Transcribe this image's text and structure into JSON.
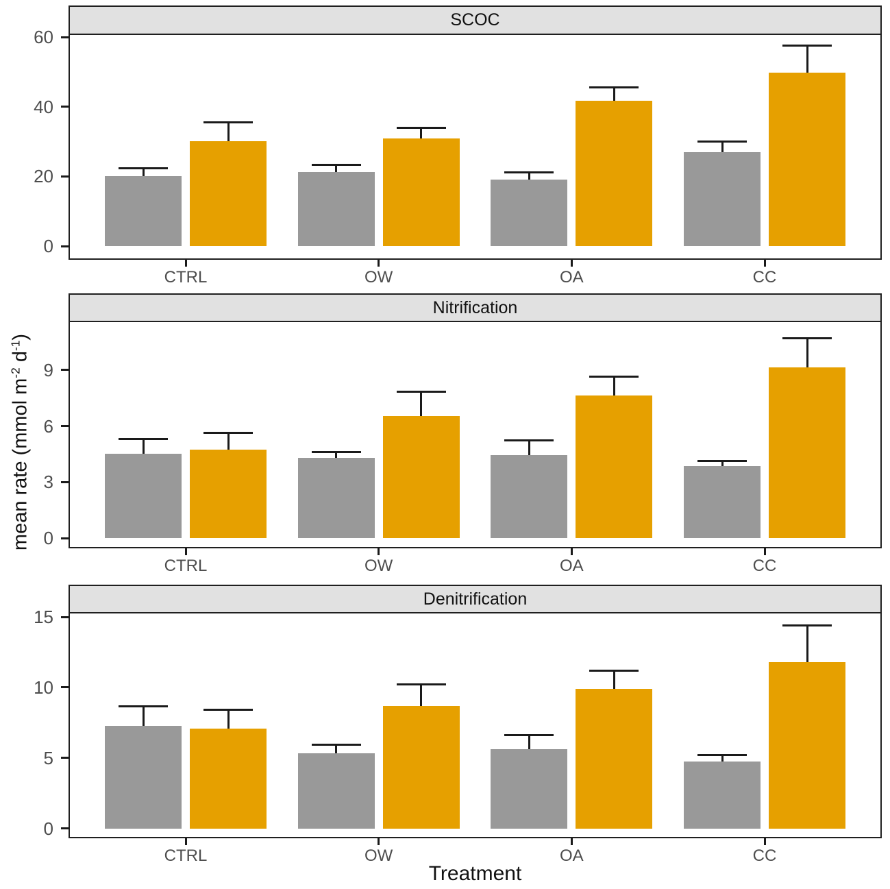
{
  "figure": {
    "x_axis_title": "Treatment",
    "y_axis_title": "mean rate (mmol m-2 d-1)",
    "y_axis_title_segments": [
      {
        "text": "mean rate (mmol m"
      },
      {
        "text": "-2",
        "sup": true
      },
      {
        "text": " d"
      },
      {
        "text": "-1",
        "sup": true
      },
      {
        "text": ")"
      }
    ]
  },
  "palette": {
    "grey_bar": "#999999",
    "orange_bar": "#E6A000",
    "strip_bg": "#E1E1E1",
    "panel_border": "#1F1F1F",
    "axis_text": "#4D4D4D",
    "errorbar": "#1A1A1A"
  },
  "chart_data": [
    {
      "type": "bar",
      "title": "SCOC",
      "categories": [
        "CTRL",
        "OW",
        "OA",
        "CC"
      ],
      "series": [
        {
          "name": "grey",
          "color_key": "grey_bar",
          "values": [
            20.0,
            21.2,
            19.2,
            26.9
          ],
          "error_upper": [
            22.4,
            23.4,
            21.2,
            30.1
          ]
        },
        {
          "name": "orange",
          "color_key": "orange_bar",
          "values": [
            30.2,
            31.0,
            41.7,
            49.8
          ],
          "error_upper": [
            35.5,
            34.0,
            45.5,
            57.5
          ]
        }
      ],
      "yticks": [
        0,
        20,
        40,
        60
      ],
      "ydomain": [
        -3.5,
        60.6
      ],
      "ylim": [
        0,
        60
      ],
      "legend": "none",
      "grid": "off"
    },
    {
      "type": "bar",
      "title": "Nitrification",
      "categories": [
        "CTRL",
        "OW",
        "OA",
        "CC"
      ],
      "series": [
        {
          "name": "grey",
          "color_key": "grey_bar",
          "values": [
            4.5,
            4.3,
            4.45,
            3.85
          ],
          "error_upper": [
            5.3,
            4.6,
            5.25,
            4.15
          ]
        },
        {
          "name": "orange",
          "color_key": "orange_bar",
          "values": [
            4.75,
            6.55,
            7.65,
            9.15
          ],
          "error_upper": [
            5.65,
            7.85,
            8.65,
            10.7
          ]
        }
      ],
      "yticks": [
        0,
        3,
        6,
        9
      ],
      "ydomain": [
        -0.47,
        11.56
      ],
      "ylim": [
        0,
        9
      ],
      "legend": "none",
      "grid": "off"
    },
    {
      "type": "bar",
      "title": "Denitrification",
      "categories": [
        "CTRL",
        "OW",
        "OA",
        "CC"
      ],
      "series": [
        {
          "name": "grey",
          "color_key": "grey_bar",
          "values": [
            7.3,
            5.35,
            5.6,
            4.75
          ],
          "error_upper": [
            8.65,
            5.95,
            6.6,
            5.2
          ]
        },
        {
          "name": "orange",
          "color_key": "orange_bar",
          "values": [
            7.1,
            8.7,
            9.9,
            11.8
          ],
          "error_upper": [
            8.4,
            10.2,
            11.2,
            14.4
          ]
        }
      ],
      "yticks": [
        0,
        5,
        10,
        15
      ],
      "ydomain": [
        -0.6,
        15.25
      ],
      "ylim": [
        0,
        15
      ],
      "legend": "none",
      "grid": "off"
    }
  ]
}
